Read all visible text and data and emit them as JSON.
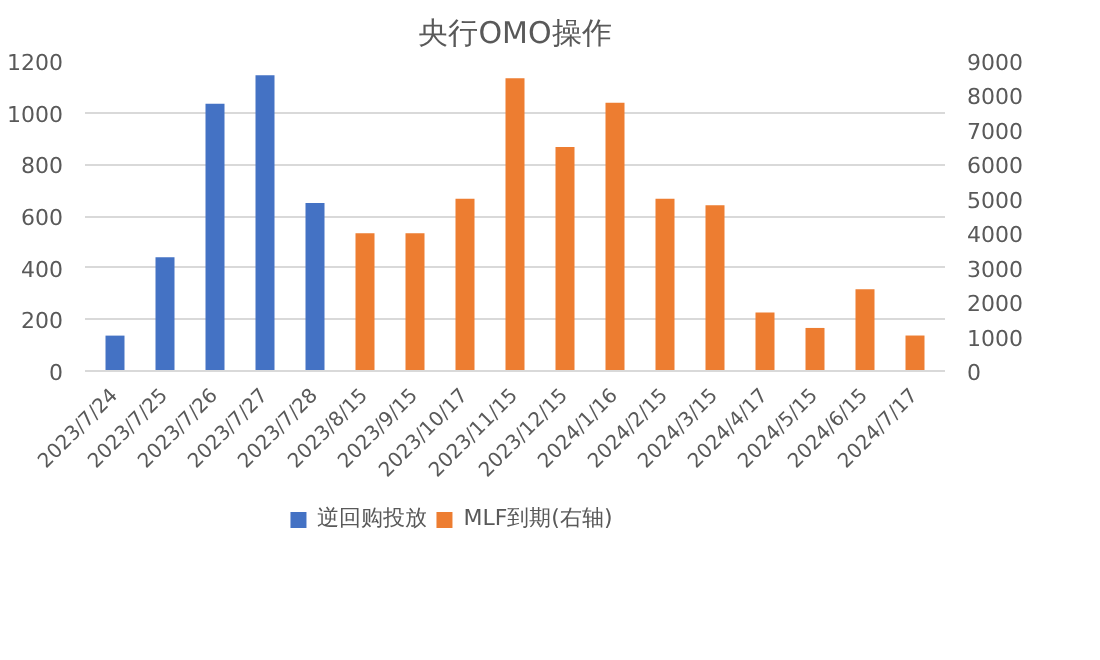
{
  "chart_data": {
    "type": "bar",
    "title": "央行OMO操作",
    "categories": [
      "2023/7/24",
      "2023/7/25",
      "2023/7/26",
      "2023/7/27",
      "2023/7/28",
      "2023/8/15",
      "2023/9/15",
      "2023/10/17",
      "2023/11/15",
      "2023/12/15",
      "2024/1/16",
      "2024/2/15",
      "2024/3/15",
      "2024/4/17",
      "2024/5/15",
      "2024/6/15",
      "2024/7/17"
    ],
    "series": [
      {
        "name": "逆回购投放",
        "color": "#4472c4",
        "values": [
          137,
          440,
          1035,
          1145,
          650,
          null,
          null,
          null,
          null,
          null,
          null,
          null,
          null,
          null,
          null,
          null,
          null
        ]
      },
      {
        "name": "MLF到期(右轴)",
        "color": "#ed7d31",
        "axis": "y2",
        "values": [
          null,
          null,
          null,
          null,
          null,
          4000,
          4000,
          5000,
          8500,
          6500,
          7790,
          5000,
          4810,
          1700,
          1250,
          2370,
          1030
        ]
      }
    ],
    "ylim": [
      0,
      1200
    ],
    "yticks": [
      0,
      200,
      400,
      600,
      800,
      1000,
      1200
    ],
    "y2lim": [
      0,
      9000
    ],
    "y2ticks": [
      0,
      1000,
      2000,
      3000,
      4000,
      5000,
      6000,
      7000,
      8000,
      9000
    ],
    "grid": "y",
    "legend": "bottom"
  }
}
